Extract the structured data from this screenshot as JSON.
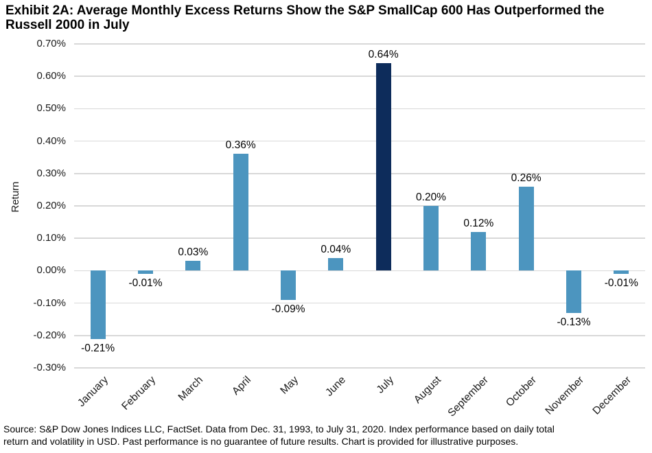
{
  "title": {
    "line1": "Exhibit 2A: Average Monthly Excess Returns Show the S&P SmallCap 600 Has Outperformed the",
    "line2": "Russell 2000 in July"
  },
  "chart_data": {
    "type": "bar",
    "title": "Exhibit 2A: Average Monthly Excess Returns Show the S&P SmallCap 600 Has Outperformed the Russell 2000 in July",
    "ylabel": "Return",
    "xlabel": "",
    "categories": [
      "January",
      "February",
      "March",
      "April",
      "May",
      "June",
      "July",
      "August",
      "September",
      "October",
      "November",
      "December"
    ],
    "values": [
      -0.21,
      -0.01,
      0.03,
      0.36,
      -0.09,
      0.04,
      0.64,
      0.2,
      0.12,
      0.26,
      -0.13,
      -0.01
    ],
    "data_labels": [
      "-0.21%",
      "-0.01%",
      "0.03%",
      "0.36%",
      "-0.09%",
      "0.04%",
      "0.64%",
      "0.20%",
      "0.12%",
      "0.26%",
      "-0.13%",
      "-0.01%"
    ],
    "highlight": {
      "category": "July",
      "index": 6
    },
    "ylim": [
      -0.3,
      0.7
    ],
    "ytick_labels": [
      "0.70%",
      "0.60%",
      "0.50%",
      "0.40%",
      "0.30%",
      "0.20%",
      "0.10%",
      "0.00%",
      "-0.10%",
      "-0.20%",
      "-0.30%"
    ],
    "grid": true,
    "legend": "none",
    "colors": {
      "bar": "#4C95BF",
      "highlight": "#0D2C5B",
      "gridline": "#D8D8D8",
      "text": "#000000"
    }
  },
  "footer": {
    "line1": "Source: S&P Dow Jones Indices LLC, FactSet. Data from Dec. 31, 1993, to July 31, 2020. Index performance based on daily total",
    "line2": "return and volatility in USD. Past performance is no guarantee of future results. Chart is provided for illustrative purposes."
  }
}
